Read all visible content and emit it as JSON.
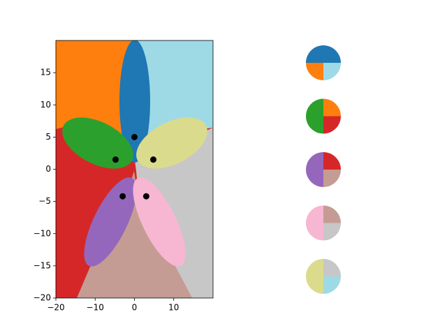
{
  "chart_data": [
    {
      "type": "scatter",
      "color": "#000000",
      "x": [
        0,
        -4.8,
        4.8,
        -3,
        3
      ],
      "y": [
        5,
        1.5,
        1.5,
        -4.2,
        -4.2
      ],
      "xlim": [
        -20,
        20
      ],
      "ylim": [
        -20,
        20
      ],
      "xticks": [
        {
          "value": -20,
          "label": "−20"
        },
        {
          "value": -10,
          "label": "−10"
        },
        0,
        10
      ],
      "yticks": [
        {
          "value": -20,
          "label": "−20"
        },
        {
          "value": -15,
          "label": "−15"
        },
        {
          "value": -10,
          "label": "−10"
        },
        {
          "value": -5,
          "label": "−5"
        },
        0,
        5,
        10,
        15
      ]
    },
    {
      "type": "pie",
      "values": [
        50,
        25,
        25
      ],
      "colors": [
        "#1f77b4",
        "#ff7f0e",
        "#9edae5"
      ]
    },
    {
      "type": "pie",
      "values": [
        25,
        50,
        25
      ],
      "colors": [
        "#ff7f0e",
        "#2ca02c",
        "#d62728"
      ]
    },
    {
      "type": "pie",
      "values": [
        25,
        50,
        25
      ],
      "colors": [
        "#d62728",
        "#9467bd",
        "#c49c94"
      ]
    },
    {
      "type": "pie",
      "values": [
        25,
        50,
        25
      ],
      "colors": [
        "#c49c94",
        "#f7b6d2",
        "#c7c7c7"
      ]
    },
    {
      "type": "pie",
      "values": [
        25,
        50,
        25
      ],
      "colors": [
        "#c7c7c7",
        "#dbdb8d",
        "#9edae5"
      ]
    }
  ]
}
